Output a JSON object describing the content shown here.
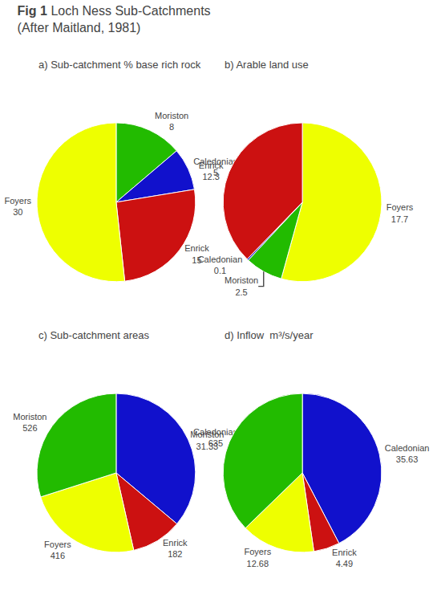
{
  "title": "Fig 1",
  "subtitle": "Loch Ness Sub-Catchments\n(After Maitland, 1981)",
  "chart_data": [
    {
      "type": "pie",
      "title": "a) Sub-catchment % base rich rock",
      "categories": [
        "Moriston",
        "Caledonian",
        "Enrick",
        "Foyers"
      ],
      "values": [
        8,
        5,
        15,
        30
      ],
      "colors": [
        "#22BB00",
        "#1111CC",
        "#CC1111",
        "#EEFF00"
      ],
      "data_labels": true
    },
    {
      "type": "pie",
      "title": "b) Arable land use",
      "categories": [
        "Foyers",
        "Moriston",
        "Caledonian",
        "Enrick"
      ],
      "values": [
        17.7,
        2.5,
        0.1,
        12.3
      ],
      "colors": [
        "#EEFF00",
        "#22BB00",
        "#1111CC",
        "#CC1111"
      ],
      "data_labels": true
    },
    {
      "type": "pie",
      "title": "c) Sub-catchment areas",
      "categories": [
        "Caledonian",
        "Enrick",
        "Foyers",
        "Moriston"
      ],
      "values": [
        635,
        182,
        416,
        526
      ],
      "colors": [
        "#1111CC",
        "#CC1111",
        "#EEFF00",
        "#22BB00"
      ],
      "data_labels": true
    },
    {
      "type": "pie",
      "title": "d) Inflow  m³/s/year",
      "categories": [
        "Caledonian",
        "Enrick",
        "Foyers",
        "Moriston"
      ],
      "values": [
        35.63,
        4.49,
        12.68,
        31.33
      ],
      "colors": [
        "#1111CC",
        "#CC1111",
        "#EEFF00",
        "#22BB00"
      ],
      "data_labels": true
    }
  ]
}
